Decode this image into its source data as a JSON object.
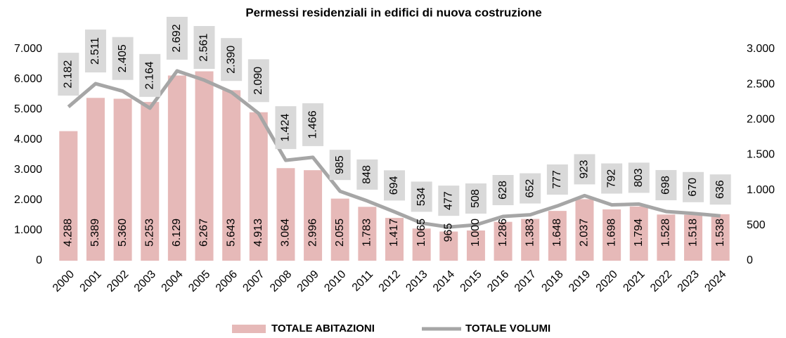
{
  "chart_data": {
    "type": "bar",
    "title": "Permessi residenziali in edifici di nuova costruzione",
    "categories": [
      "2000",
      "2001",
      "2002",
      "2003",
      "2004",
      "2005",
      "2006",
      "2007",
      "2008",
      "2009",
      "2010",
      "2011",
      "2012",
      "2013",
      "2014",
      "2015",
      "2016",
      "2017",
      "2018",
      "2019",
      "2020",
      "2021",
      "2022",
      "2023",
      "2024"
    ],
    "series": [
      {
        "name": "TOTALE ABITAZIONI",
        "type": "bar",
        "color": "#e6b9b8",
        "values": [
          4288,
          5389,
          5360,
          5253,
          6129,
          6267,
          5643,
          4913,
          3064,
          2996,
          2055,
          1783,
          1417,
          1065,
          965,
          1000,
          1286,
          1383,
          1648,
          2037,
          1698,
          1794,
          1528,
          1518,
          1538
        ],
        "value_labels": [
          "4.288",
          "5.389",
          "5.360",
          "5.253",
          "6.129",
          "6.267",
          "5.643",
          "4.913",
          "3.064",
          "2.996",
          "2.055",
          "1.783",
          "1.417",
          "1.065",
          "965",
          "1.000",
          "1.286",
          "1.383",
          "1.648",
          "2.037",
          "1.698",
          "1.794",
          "1.528",
          "1.518",
          "1.538"
        ]
      },
      {
        "name": "TOTALE VOLUMI",
        "type": "line",
        "axis": "y2",
        "color": "#a6a6a6",
        "values": [
          2182,
          2511,
          2405,
          2164,
          2692,
          2561,
          2390,
          2090,
          1424,
          1466,
          985,
          848,
          694,
          534,
          477,
          508,
          628,
          652,
          777,
          923,
          792,
          803,
          698,
          670,
          636
        ],
        "value_labels": [
          "2.182",
          "2.511",
          "2.405",
          "2.164",
          "2.692",
          "2.561",
          "2.390",
          "2.090",
          "1.424",
          "1.466",
          "985",
          "848",
          "694",
          "534",
          "477",
          "508",
          "628",
          "652",
          "777",
          "923",
          "792",
          "803",
          "698",
          "670",
          "636"
        ]
      }
    ],
    "ylim": [
      0,
      7000
    ],
    "yticks": [
      0,
      {
        "value": 1000,
        "label": "1.000"
      },
      {
        "value": 2000,
        "label": "2.000"
      },
      {
        "value": 3000,
        "label": "3.000"
      },
      {
        "value": 4000,
        "label": "4.000"
      },
      {
        "value": 5000,
        "label": "5.000"
      },
      {
        "value": 6000,
        "label": "6.000"
      },
      {
        "value": 7000,
        "label": "7.000"
      }
    ],
    "y2lim": [
      0,
      3000
    ],
    "y2ticks": [
      0,
      500,
      {
        "value": 1000,
        "label": "1.000"
      },
      {
        "value": 1500,
        "label": "1.500"
      },
      {
        "value": 2000,
        "label": "2.000"
      },
      {
        "value": 2500,
        "label": "2.500"
      },
      {
        "value": 3000,
        "label": "3.000"
      }
    ],
    "legend": "bottom"
  }
}
